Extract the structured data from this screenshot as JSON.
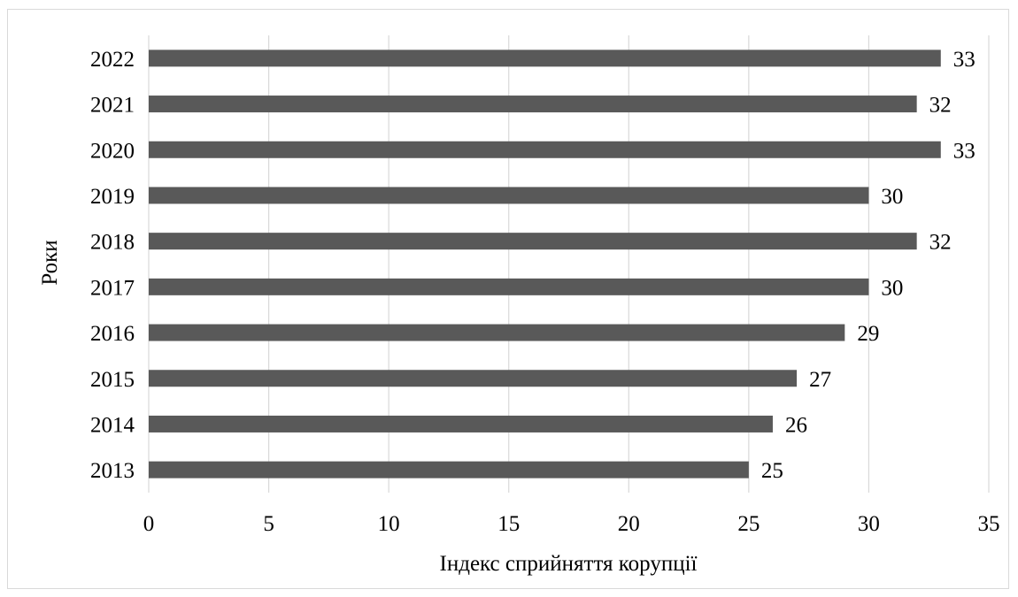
{
  "chart_data": {
    "type": "bar",
    "orientation": "horizontal",
    "title": "",
    "xlabel": "Індекс сприйняття корупції",
    "ylabel": "Роки",
    "categories": [
      "2013",
      "2014",
      "2015",
      "2016",
      "2017",
      "2018",
      "2019",
      "2020",
      "2021",
      "2022"
    ],
    "values": [
      25,
      26,
      27,
      29,
      30,
      32,
      30,
      33,
      32,
      33
    ],
    "xlim": [
      0,
      35
    ],
    "xticks": [
      "0",
      "5",
      "10",
      "15",
      "20",
      "25",
      "30",
      "35"
    ],
    "grid": "vertical",
    "legend": "none",
    "data_labels": true,
    "bar_color": "#595959",
    "grid_color": "#d9d9d9"
  }
}
